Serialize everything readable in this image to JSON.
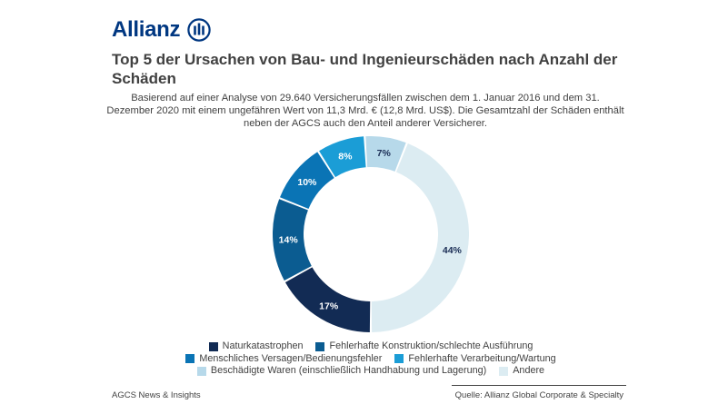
{
  "brand": {
    "name": "Allianz",
    "color": "#003781"
  },
  "header": {
    "title": "Top 5 der Ursachen von Bau- und Ingenieurschäden nach Anzahl der Schäden",
    "subtitle": "Basierend auf einer Analyse von 29.640 Versicherungsfällen zwischen dem 1. Januar 2016 und dem 31. Dezember 2020 mit einem ungefähren Wert von 11,3 Mrd. € (12,8 Mrd. US$). Die Gesamtzahl der Schäden enthält neben der AGCS auch den Anteil anderer Versicherer."
  },
  "chart_data": {
    "type": "pie",
    "donut": true,
    "start": "bottom",
    "direction": "clockwise",
    "legend_position": "bottom",
    "categories": [
      "Naturkatastrophen",
      "Fehlerhafte Konstruktion/schlechte Ausführung",
      "Menschliches Versagen/Bedienungsfehler",
      "Fehlerhafte Verarbeitung/Wartung",
      "Beschädigte Waren (einschließlich Handhabung und Lagerung)",
      "Andere"
    ],
    "values": [
      17,
      14,
      10,
      8,
      7,
      44
    ],
    "labels": [
      "17%",
      "14%",
      "10%",
      "8%",
      "7%",
      "44%"
    ],
    "colors": [
      "#122b54",
      "#0b5c91",
      "#0a74b5",
      "#1b9dd6",
      "#b7d9ea",
      "#dcecf2"
    ],
    "label_colors": [
      "#ffffff",
      "#ffffff",
      "#ffffff",
      "#ffffff",
      "#1a2d55",
      "#1a2d55"
    ]
  },
  "footer": {
    "left": "AGCS News & Insights",
    "right": "Quelle: Allianz Global Corporate & Specialty"
  }
}
